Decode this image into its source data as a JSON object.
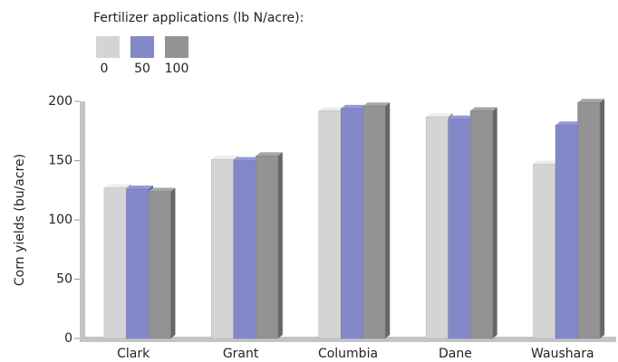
{
  "chart_data": {
    "type": "bar",
    "legend_title": "Fertilizer applications (lb N/acre):",
    "y_label": "Corn yields (bu/acre)",
    "categories": [
      "Clark",
      "Grant",
      "Columbia",
      "Dane",
      "Waushara"
    ],
    "series": [
      {
        "name": "0",
        "color": "#d4d4d6",
        "values": [
          127,
          151,
          192,
          187,
          147
        ]
      },
      {
        "name": "50",
        "color": "#8389c8",
        "values": [
          126,
          150,
          194,
          185,
          180
        ]
      },
      {
        "name": "100",
        "color": "#939396",
        "values": [
          124,
          154,
          196,
          192,
          199
        ]
      }
    ],
    "ylim": [
      0,
      200
    ],
    "yticks": [
      0,
      50,
      100,
      150,
      200
    ]
  }
}
